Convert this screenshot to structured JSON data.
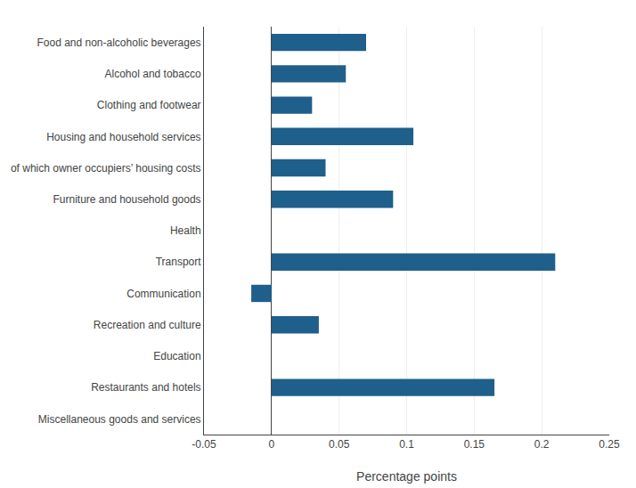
{
  "chart_data": {
    "type": "bar",
    "orientation": "horizontal",
    "categories": [
      "Food and non-alcoholic beverages",
      "Alcohol and tobacco",
      "Clothing and footwear",
      "Housing and household services",
      "of which owner occupiers’ housing costs",
      "Furniture and household goods",
      "Health",
      "Transport",
      "Communication",
      "Recreation and culture",
      "Education",
      "Restaurants and hotels",
      "Miscellaneous goods and services"
    ],
    "values": [
      0.07,
      0.055,
      0.03,
      0.105,
      0.04,
      0.09,
      0.0,
      0.21,
      -0.015,
      0.035,
      0.0,
      0.165,
      0.0
    ],
    "color": "#1f5f8b",
    "xlabel": "Percentage points",
    "xlim": [
      -0.05,
      0.25
    ],
    "xticks": [
      -0.05,
      0,
      0.05,
      0.1,
      0.15,
      0.2,
      0.25
    ],
    "grid": true
  }
}
